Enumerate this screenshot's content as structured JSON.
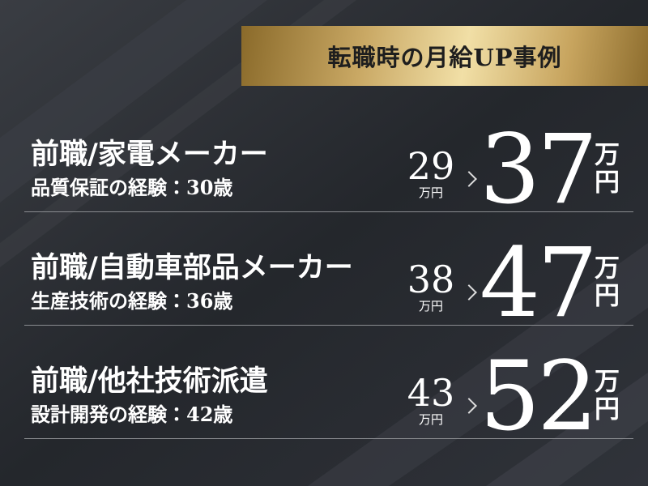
{
  "header": {
    "title": "転職時の月給UP事例"
  },
  "unit": "万円",
  "cases": [
    {
      "previous_job": "前職/家電メーカー",
      "detail": "品質保証の経験：30歳",
      "before": 29,
      "after": 37
    },
    {
      "previous_job": "前職/自動車部品メーカー",
      "detail": "生産技術の経験：36歳",
      "before": 38,
      "after": 47
    },
    {
      "previous_job": "前職/他社技術派遣",
      "detail": "設計開発の経験：42歳",
      "before": 43,
      "after": 52
    }
  ]
}
